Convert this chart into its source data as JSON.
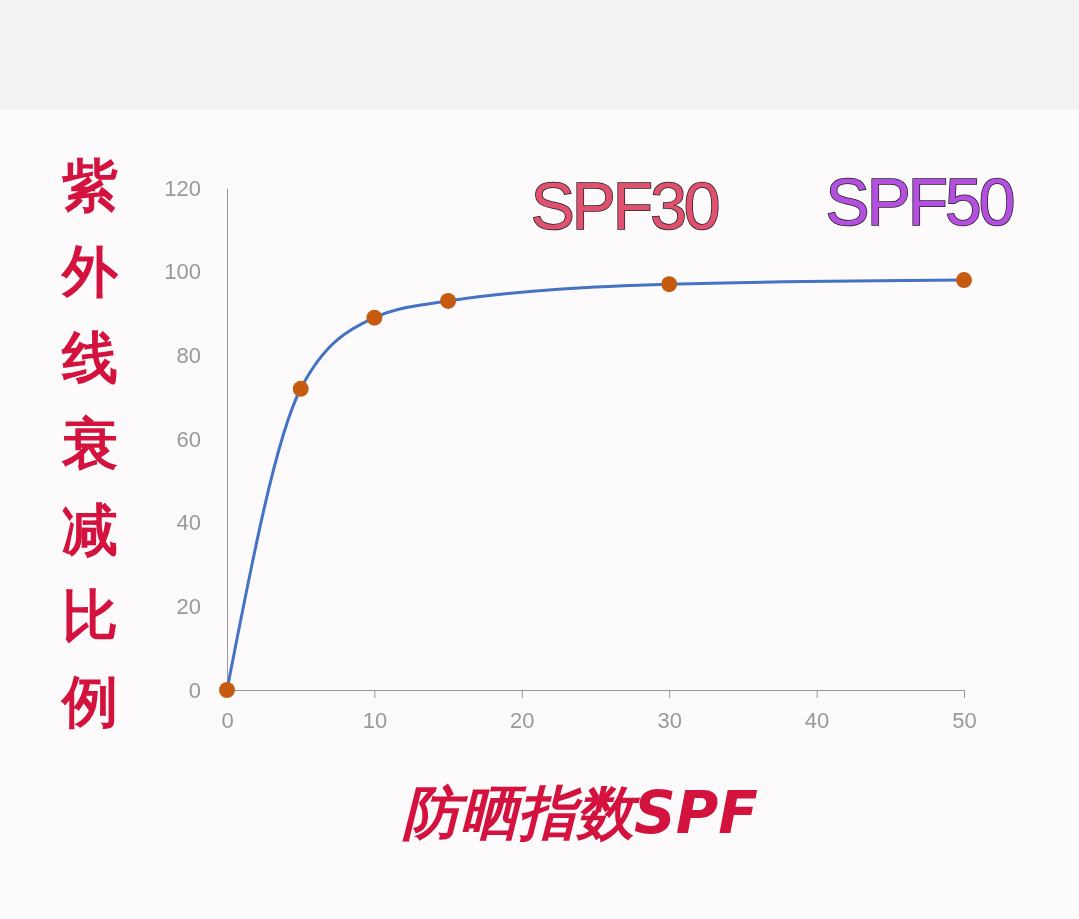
{
  "chart_data": {
    "type": "line",
    "xlabel": "防晒指数SPF",
    "ylabel": "紫外线衰减比例",
    "x": [
      0,
      5,
      10,
      15,
      30,
      50
    ],
    "series": [
      {
        "color": "#4472c4",
        "values": [
          0,
          72,
          89,
          93,
          97,
          98
        ]
      }
    ],
    "marker": "circle",
    "xlim": [
      0,
      50
    ],
    "xticks": [
      0,
      10,
      20,
      30,
      40,
      50
    ],
    "ylim": [
      0,
      120
    ],
    "yticks": [
      0,
      20,
      40,
      60,
      80,
      100,
      120
    ],
    "grid": false,
    "annotations": [
      {
        "text": "SPF30",
        "x": 30,
        "y": 97
      },
      {
        "text": "SPF50",
        "x": 50,
        "y": 98
      }
    ]
  }
}
